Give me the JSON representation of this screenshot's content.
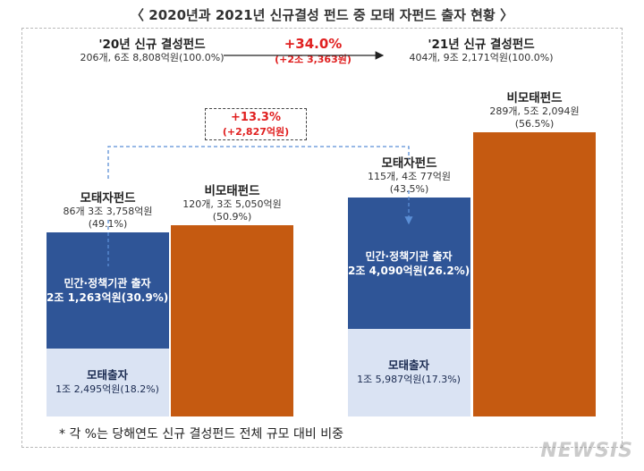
{
  "title": "〈 2020년과 2021년 신규결성 펀드 중 모태 자펀드 출자 현황 〉",
  "top_summary": {
    "y2020_heading": "'20년 신규 결성펀드",
    "y2020_detail": "206개, 6조 8,808억원(100.0%)",
    "y2021_heading": "'21년 신규 결성펀드",
    "y2021_detail": "404개, 9조 2,171억원(100.0%)",
    "growth_pct": "+34.0%",
    "growth_amount": "(+2조 3,363원)"
  },
  "middle_growth": {
    "pct": "+13.3%",
    "amount": "(+2,827억원)"
  },
  "groups": {
    "y2020": {
      "mother_heading": "모태자펀드",
      "mother_detail_1": "86개 3조 3,758억원",
      "mother_detail_2": "(49.1%)",
      "nonmother_heading": "비모태펀드",
      "nonmother_detail_1": "120개, 3조 5,050억원",
      "nonmother_detail_2": "(50.9%)",
      "private_label": "민간·정책기관 출자",
      "private_value": "2조 1,263억원(30.9%)",
      "mother_invest_label": "모태출자",
      "mother_invest_value": "1조 2,495억원(18.2%)"
    },
    "y2021": {
      "mother_heading": "모태자펀드",
      "mother_detail_1": "115개, 4조 77억원",
      "mother_detail_2": "(43.5%)",
      "nonmother_heading": "비모태펀드",
      "nonmother_detail_1": "289개, 5조 2,094원",
      "nonmother_detail_2": "(56.5%)",
      "private_label": "민간·정책기관 출자",
      "private_value": "2조 4,090억원(26.2%)",
      "mother_invest_label": "모태출자",
      "mother_invest_value": "1조 5,987억원(17.3%)"
    }
  },
  "note": "* 각 %는 당해연도 신규 결성펀드 전체 규모 대비 비중",
  "watermark": "NEWSIS",
  "colors": {
    "private": "#2f5597",
    "mother_invest": "#dae3f3",
    "nonmother": "#c55a11",
    "growth_red": "#e02020"
  },
  "chart_data": {
    "type": "bar",
    "stacked": true,
    "unit": "억원",
    "categories": [
      "2020 모태자펀드",
      "2020 비모태펀드",
      "2021 모태자펀드",
      "2021 비모태펀드"
    ],
    "series": [
      {
        "name": "모태출자",
        "values": [
          12495,
          0,
          15987,
          0
        ]
      },
      {
        "name": "민간·정책기관 출자",
        "values": [
          21263,
          0,
          24090,
          0
        ]
      },
      {
        "name": "비모태펀드",
        "values": [
          0,
          35050,
          0,
          52094
        ]
      }
    ],
    "totals": {
      "2020": 68808,
      "2021": 92171
    },
    "ylim": [
      0,
      55000
    ]
  }
}
